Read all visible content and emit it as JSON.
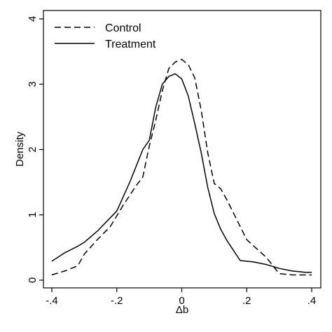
{
  "chart_data": {
    "type": "line",
    "title": "",
    "xlabel": "Δb",
    "ylabel": "Density",
    "xlim": [
      -0.4,
      0.4
    ],
    "ylim": [
      0,
      4
    ],
    "xticks": [
      -0.4,
      -0.2,
      0,
      0.2,
      0.4
    ],
    "xtick_labels": [
      "-.4",
      "-.2",
      "0",
      ".2",
      ".4"
    ],
    "yticks": [
      0,
      1,
      2,
      3,
      4
    ],
    "ytick_labels": [
      "0",
      "1",
      "2",
      "3",
      "4"
    ],
    "grid": false,
    "legend": "top-left",
    "series": [
      {
        "name": "Control",
        "style": "dashed",
        "color": "#000000",
        "x": [
          -0.4,
          -0.36,
          -0.32,
          -0.3,
          -0.26,
          -0.22,
          -0.18,
          -0.14,
          -0.12,
          -0.1,
          -0.08,
          -0.06,
          -0.04,
          -0.02,
          0,
          0.02,
          0.04,
          0.06,
          0.08,
          0.1,
          0.12,
          0.14,
          0.16,
          0.2,
          0.26,
          0.3,
          0.34,
          0.4
        ],
        "y": [
          0.08,
          0.14,
          0.22,
          0.4,
          0.62,
          0.82,
          1.15,
          1.45,
          1.58,
          2.05,
          2.45,
          2.9,
          3.24,
          3.34,
          3.38,
          3.3,
          3.1,
          2.6,
          1.95,
          1.48,
          1.4,
          1.22,
          1.02,
          0.62,
          0.35,
          0.1,
          0.08,
          0.08
        ]
      },
      {
        "name": "Treatment",
        "style": "solid",
        "color": "#000000",
        "x": [
          -0.4,
          -0.36,
          -0.32,
          -0.3,
          -0.26,
          -0.2,
          -0.16,
          -0.14,
          -0.12,
          -0.1,
          -0.08,
          -0.06,
          -0.04,
          -0.02,
          0,
          0.02,
          0.04,
          0.06,
          0.08,
          0.1,
          0.12,
          0.14,
          0.18,
          0.22,
          0.26,
          0.3,
          0.34,
          0.38,
          0.4
        ],
        "y": [
          0.29,
          0.42,
          0.52,
          0.58,
          0.75,
          1.06,
          1.5,
          1.75,
          2.0,
          2.14,
          2.65,
          3.0,
          3.12,
          3.16,
          3.08,
          2.82,
          2.4,
          1.95,
          1.42,
          1.02,
          0.78,
          0.6,
          0.3,
          0.28,
          0.24,
          0.18,
          0.14,
          0.12,
          0.12
        ]
      }
    ]
  }
}
